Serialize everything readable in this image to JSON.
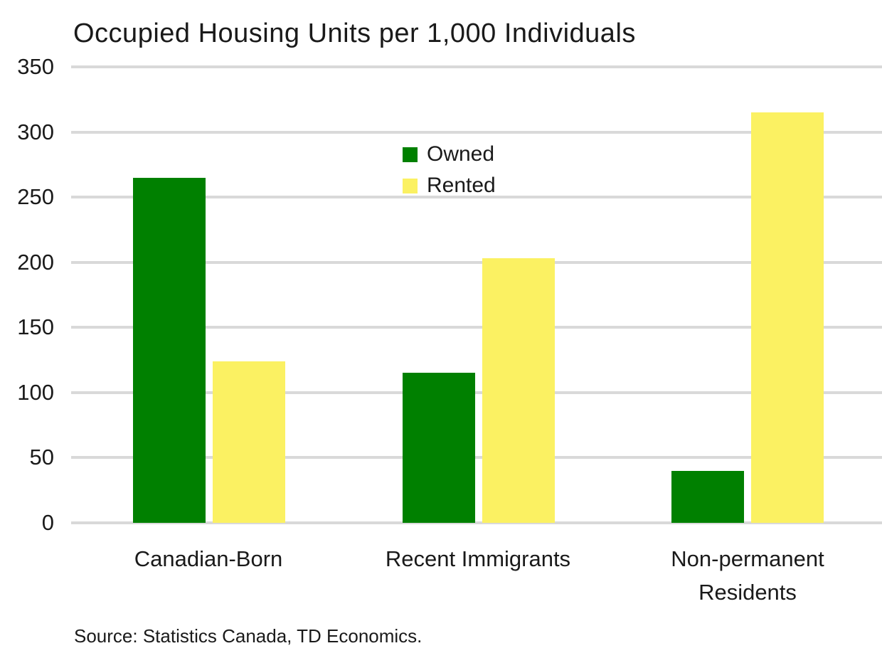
{
  "chart_data": {
    "type": "bar",
    "title": "Occupied Housing Units per 1,000 Individuals",
    "categories": [
      "Canadian-Born",
      "Recent Immigrants",
      "Non-permanent Residents"
    ],
    "series": [
      {
        "name": "Owned",
        "color": "#008000",
        "values": [
          265,
          115,
          40
        ]
      },
      {
        "name": "Rented",
        "color": "#FBF162",
        "values": [
          124,
          203,
          315
        ]
      }
    ],
    "ylim": [
      0,
      350
    ],
    "yticks": [
      0,
      50,
      100,
      150,
      200,
      250,
      300,
      350
    ],
    "xlabel": "",
    "ylabel": "",
    "grid": "horizontal",
    "gridline_color": "#D9D9D9",
    "legend_position": "upper-center",
    "source": "Source: Statistics Canada, TD Economics."
  },
  "colors": {
    "background": "#FFFFFF",
    "text": "#1A1A1A",
    "grid": "#D9D9D9",
    "owned_green": "#008000",
    "rented_yellow": "#FBF162"
  }
}
